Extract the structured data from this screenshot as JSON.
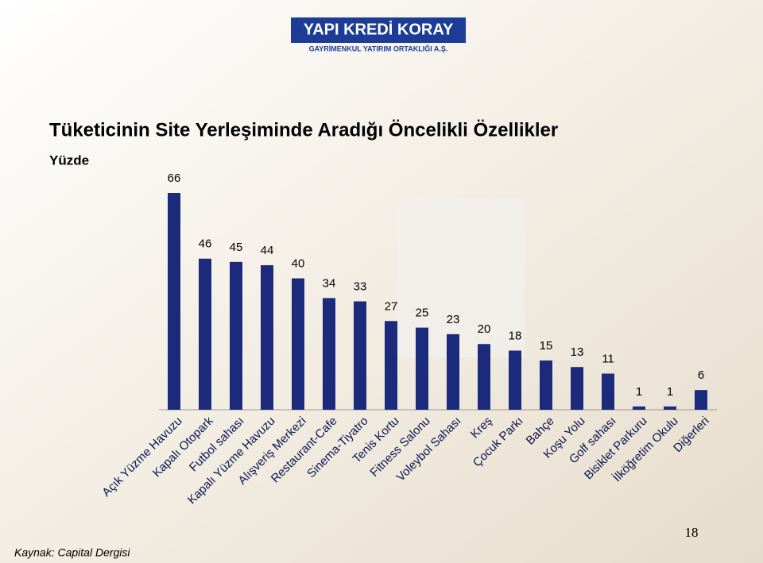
{
  "logo": {
    "name": "YAPI KREDİ KORAY",
    "tagline": "GAYRİMENKUL YATIRIM ORTAKLIĞI A.Ş."
  },
  "chart_data": {
    "type": "bar",
    "title": "Tüketicinin Site Yerleşiminde Aradığı Öncelikli Özellikler",
    "subtitle": "Yüzde",
    "categories": [
      "Açık Yüzme Havuzu",
      "Kapalı Otopark",
      "Futbol sahası",
      "Kapalı Yüzme Havuzu",
      "Alışveriş Merkezi",
      "Restaurant-Cafe",
      "Sinema-Tiyatro",
      "Tenis Kortu",
      "Fitness Salonu",
      "Voleybol Sahası",
      "Kreş",
      "Çocuk Parkı",
      "Bahçe",
      "Koşu Yolu",
      "Golf sahası",
      "Bisiklet Parkuru",
      "İlköğretim Okulu",
      "Diğerleri"
    ],
    "values": [
      66,
      46,
      45,
      44,
      40,
      34,
      33,
      27,
      25,
      23,
      20,
      18,
      15,
      13,
      11,
      1,
      1,
      6
    ],
    "color": "#1b2a7a"
  },
  "source": "Kaynak: Capital Dergisi",
  "page_number": "18"
}
